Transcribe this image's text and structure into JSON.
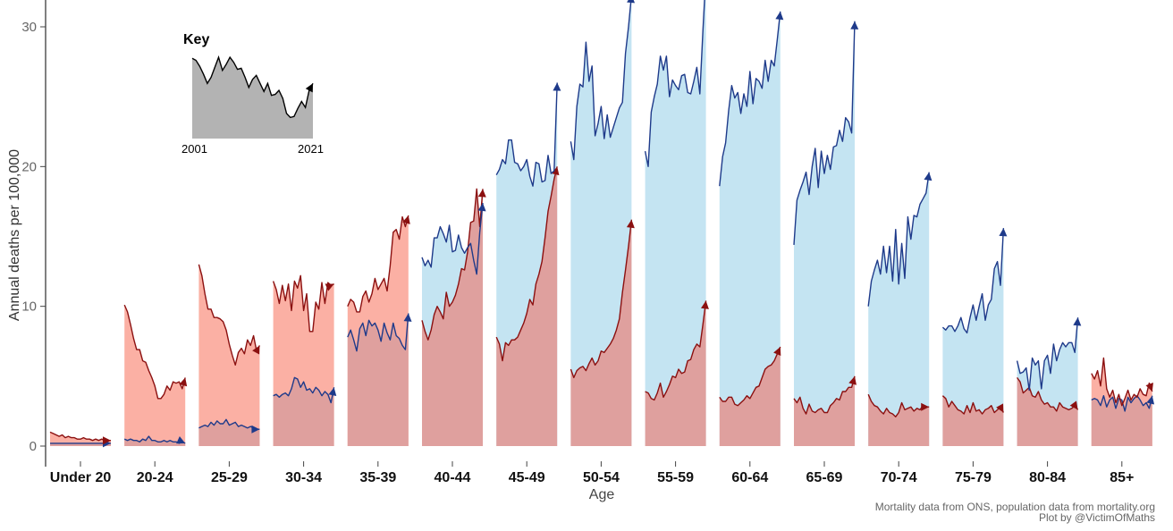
{
  "colors": {
    "female_line": "#1e3a8a",
    "female_fill": "#c4e4f2",
    "male_line": "#8b1010",
    "male_fill": "#dfa09e",
    "male_fill_top": "#fbb0a4",
    "key_fill": "#b3b3b3",
    "key_line": "#000000"
  },
  "chart_data": {
    "type": "area",
    "xlabel": "Age",
    "ylabel": "Annual deaths per 100,000",
    "ylim": [
      0,
      35
    ],
    "yticks": [
      0,
      10,
      20,
      30
    ],
    "grid": false,
    "years": [
      2001,
      2021
    ],
    "categories": [
      "Under 20",
      "20-24",
      "25-29",
      "30-34",
      "35-39",
      "40-44",
      "45-49",
      "50-54",
      "55-59",
      "60-64",
      "65-69",
      "70-74",
      "75-79",
      "80-84",
      "85+"
    ],
    "series": [
      {
        "line_color": "#1e3a8a",
        "values": [
          [
            0.2,
            0.2,
            0.2,
            0.2,
            0.2,
            0.2,
            0.2,
            0.2,
            0.2,
            0.2,
            0.2,
            0.2,
            0.2,
            0.2,
            0.2,
            0.2,
            0.2,
            0.2,
            0.2,
            0.2,
            0.2
          ],
          [
            0.5,
            0.4,
            0.5,
            0.4,
            0.4,
            0.3,
            0.5,
            0.4,
            0.7,
            0.4,
            0.4,
            0.3,
            0.3,
            0.4,
            0.3,
            0.4,
            0.3,
            0.3,
            0.2,
            0.3,
            0.2
          ],
          [
            1.3,
            1.4,
            1.5,
            1.4,
            1.7,
            1.5,
            1.8,
            1.6,
            1.6,
            1.9,
            1.5,
            1.6,
            1.7,
            1.4,
            1.5,
            1.4,
            1.3,
            1.4,
            1.3,
            1.2,
            1.2
          ],
          [
            3.6,
            3.7,
            3.5,
            3.7,
            3.8,
            3.6,
            4.1,
            4.9,
            4.8,
            4.2,
            4.6,
            4.0,
            4.1,
            3.8,
            4.2,
            4.0,
            3.6,
            3.9,
            3.7,
            3.1,
            4.2
          ],
          [
            7.8,
            8.3,
            7.6,
            6.8,
            8.4,
            8.8,
            7.9,
            9.0,
            8.6,
            8.8,
            8.3,
            7.5,
            8.8,
            8.1,
            7.6,
            8.8,
            7.9,
            7.7,
            7.2,
            6.9,
            9.5
          ],
          [
            13.5,
            12.9,
            13.3,
            12.8,
            14.9,
            14.9,
            15.7,
            15.2,
            14.6,
            15.8,
            13.9,
            14.0,
            15.1,
            14.2,
            13.8,
            14.2,
            14.5,
            13.3,
            12.3,
            15.3,
            17.4
          ],
          [
            19.4,
            19.8,
            20.5,
            20.2,
            21.9,
            21.9,
            20.3,
            20.2,
            19.7,
            20.0,
            20.5,
            19.3,
            18.6,
            20.3,
            20.2,
            18.9,
            19.0,
            20.8,
            19.5,
            19.7,
            26.0
          ],
          [
            21.8,
            20.5,
            24.3,
            25.9,
            25.7,
            28.9,
            26.1,
            27.2,
            22.2,
            23.1,
            24.3,
            22.0,
            23.7,
            22.1,
            22.8,
            23.5,
            24.2,
            24.6,
            28.1,
            30.0,
            32.3
          ],
          [
            21.1,
            20.0,
            23.9,
            25.0,
            25.9,
            27.9,
            26.9,
            27.9,
            25.0,
            26.2,
            25.8,
            25.5,
            26.5,
            26.6,
            25.3,
            25.2,
            26.1,
            27.1,
            25.2,
            29.7,
            33.8
          ],
          [
            18.6,
            20.7,
            21.7,
            24.0,
            25.8,
            24.9,
            25.3,
            23.8,
            25.2,
            24.3,
            26.8,
            24.5,
            26.3,
            26.1,
            25.6,
            27.6,
            26.1,
            27.6,
            27.2,
            29.1,
            31.1
          ],
          [
            14.4,
            17.6,
            18.3,
            18.9,
            19.6,
            18.0,
            20.0,
            21.3,
            18.5,
            21.1,
            19.5,
            20.8,
            19.8,
            21.4,
            21.5,
            22.6,
            21.8,
            23.5,
            23.2,
            22.4,
            30.4
          ],
          [
            10.0,
            11.8,
            12.6,
            13.3,
            12.3,
            14.3,
            12.4,
            14.3,
            11.8,
            15.5,
            11.6,
            14.5,
            12.0,
            16.4,
            14.8,
            16.5,
            16.4,
            17.3,
            17.7,
            18.1,
            19.6
          ],
          [
            8.5,
            8.3,
            8.6,
            8.6,
            8.2,
            8.6,
            9.2,
            8.4,
            8.1,
            9.2,
            10.1,
            9.0,
            10.0,
            10.9,
            9.0,
            10.1,
            10.5,
            12.7,
            13.2,
            11.5,
            15.6
          ],
          [
            6.1,
            5.2,
            5.3,
            5.6,
            4.0,
            6.3,
            5.8,
            6.1,
            4.1,
            6.1,
            6.5,
            5.2,
            7.3,
            6.1,
            6.9,
            7.4,
            7.1,
            7.4,
            7.4,
            6.7,
            9.2
          ],
          [
            3.3,
            3.4,
            3.3,
            2.9,
            3.6,
            2.8,
            3.3,
            3.5,
            2.7,
            3.4,
            3.3,
            2.5,
            3.5,
            3.1,
            3.4,
            3.6,
            3.3,
            2.9,
            3.1,
            2.7,
            3.6
          ]
        ]
      },
      {
        "line_color": "#8b1010",
        "values": [
          [
            1.0,
            0.9,
            0.8,
            0.7,
            0.8,
            0.6,
            0.7,
            0.6,
            0.6,
            0.5,
            0.5,
            0.6,
            0.5,
            0.5,
            0.4,
            0.5,
            0.4,
            0.5,
            0.4,
            0.4,
            0.4
          ],
          [
            10.1,
            9.6,
            8.7,
            7.7,
            6.9,
            6.9,
            6.1,
            6.0,
            5.4,
            4.9,
            4.3,
            3.4,
            3.4,
            3.7,
            4.3,
            4.0,
            4.6,
            4.5,
            4.6,
            4.1,
            4.9
          ],
          [
            13.0,
            12.2,
            10.9,
            9.8,
            9.8,
            9.2,
            9.2,
            9.1,
            8.9,
            8.3,
            7.3,
            6.5,
            5.8,
            6.7,
            7.0,
            6.6,
            7.6,
            7.2,
            7.9,
            6.8,
            7.2
          ],
          [
            11.8,
            11.2,
            10.2,
            11.5,
            10.4,
            11.6,
            9.7,
            11.8,
            11.3,
            12.2,
            9.7,
            10.9,
            8.2,
            8.2,
            10.3,
            9.8,
            11.7,
            10.2,
            11.7,
            11.5,
            11.6
          ],
          [
            10.0,
            10.5,
            10.3,
            9.6,
            9.6,
            10.7,
            11.1,
            10.3,
            10.9,
            12.0,
            11.2,
            11.6,
            12.0,
            11.1,
            12.9,
            15.3,
            15.5,
            14.8,
            16.4,
            15.7,
            16.5
          ],
          [
            9.0,
            8.2,
            7.6,
            8.3,
            9.4,
            10.0,
            9.6,
            9.1,
            11.0,
            10.0,
            10.3,
            10.8,
            11.6,
            12.7,
            12.6,
            13.9,
            16.0,
            16.1,
            18.4,
            15.7,
            18.4
          ],
          [
            7.8,
            7.3,
            6.1,
            7.4,
            7.2,
            7.6,
            7.6,
            7.8,
            8.3,
            8.8,
            9.5,
            10.5,
            10.1,
            11.6,
            12.3,
            13.2,
            14.9,
            16.8,
            17.9,
            19.1,
            20.0
          ],
          [
            5.5,
            4.9,
            5.4,
            5.6,
            5.7,
            5.4,
            5.9,
            6.3,
            5.8,
            6.1,
            6.8,
            6.7,
            7.0,
            7.3,
            7.7,
            8.3,
            9.1,
            11.0,
            12.6,
            14.3,
            16.2
          ],
          [
            3.9,
            3.8,
            3.4,
            3.3,
            3.8,
            4.5,
            3.5,
            3.9,
            4.4,
            5.0,
            4.9,
            5.5,
            5.2,
            5.3,
            6.1,
            6.2,
            6.9,
            7.3,
            7.1,
            8.7,
            10.4
          ],
          [
            3.5,
            3.2,
            3.2,
            3.5,
            3.5,
            3.0,
            2.9,
            3.1,
            3.3,
            3.6,
            3.4,
            3.8,
            4.2,
            4.3,
            4.9,
            5.5,
            5.7,
            5.8,
            6.1,
            6.6,
            7.1
          ],
          [
            3.4,
            3.1,
            3.5,
            2.7,
            2.3,
            3.0,
            2.5,
            2.4,
            2.6,
            2.7,
            2.4,
            2.4,
            2.9,
            3.1,
            3.4,
            3.3,
            3.9,
            3.9,
            4.2,
            4.2,
            5.0
          ],
          [
            3.7,
            3.2,
            2.9,
            2.8,
            2.5,
            2.3,
            2.7,
            2.4,
            2.3,
            2.1,
            2.4,
            3.1,
            2.6,
            2.7,
            2.8,
            2.5,
            2.7,
            2.6,
            2.9,
            2.8,
            2.8
          ],
          [
            3.6,
            3.4,
            2.8,
            3.2,
            2.9,
            2.6,
            2.5,
            2.3,
            2.9,
            2.4,
            3.1,
            2.5,
            2.6,
            2.3,
            2.6,
            2.7,
            2.9,
            2.4,
            2.6,
            2.8,
            2.4
          ],
          [
            4.9,
            4.6,
            3.8,
            4.0,
            4.2,
            3.6,
            3.5,
            3.9,
            3.3,
            3.0,
            3.1,
            2.8,
            2.8,
            2.5,
            3.1,
            2.8,
            2.7,
            2.6,
            2.7,
            2.9,
            2.6
          ],
          [
            5.2,
            4.8,
            5.4,
            4.3,
            6.3,
            4.1,
            3.5,
            4.0,
            3.1,
            3.7,
            2.9,
            3.4,
            4.0,
            3.3,
            3.7,
            3.5,
            4.1,
            3.7,
            3.6,
            4.5,
            3.9
          ]
        ]
      }
    ],
    "key": {
      "title": "Key",
      "start": "2001",
      "end": "2021",
      "shape": [
        30.5,
        30.3,
        29.7,
        28.9,
        28.0,
        28.6,
        29.6,
        30.6,
        29.3,
        29.9,
        30.6,
        30.1,
        29.4,
        29.5,
        28.6,
        27.6,
        28.4,
        28.8,
        28.0,
        27.2,
        28.0,
        26.8,
        26.9,
        27.3,
        26.5,
        25.0,
        24.6,
        24.7,
        25.5,
        26.2,
        25.6,
        27.3,
        28.0
      ]
    }
  },
  "footer": {
    "source": "Mortality data from ONS, population data from mortality.org",
    "credit": "Plot by @VictimOfMaths"
  }
}
